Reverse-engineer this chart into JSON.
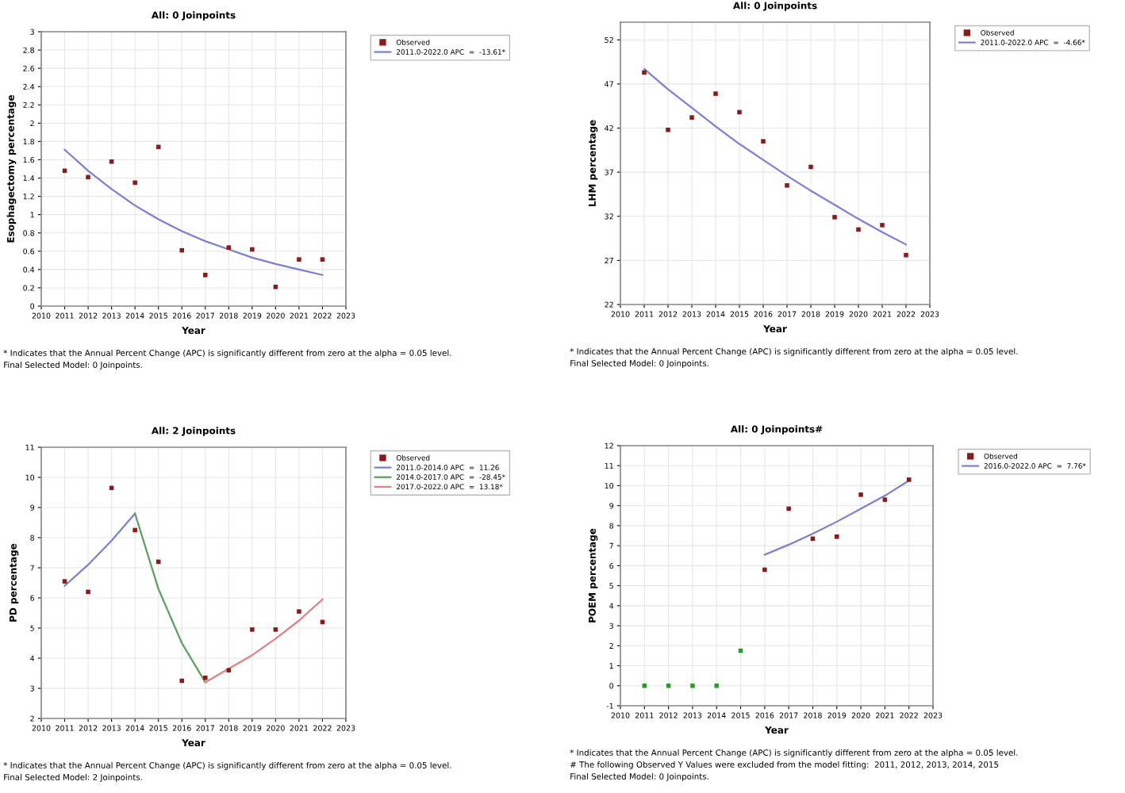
{
  "chart_data": [
    {
      "type": "line",
      "title": "All: 0 Joinpoints",
      "xlabel": "Year",
      "ylabel": "Esophagectomy percentage",
      "xlim": [
        2010,
        2023
      ],
      "xticks": [
        2010,
        2011,
        2012,
        2013,
        2014,
        2015,
        2016,
        2017,
        2018,
        2019,
        2020,
        2021,
        2022,
        2023
      ],
      "ylim": [
        0,
        3
      ],
      "yticks": [
        0,
        0.2,
        0.4,
        0.6,
        0.8,
        1,
        1.2,
        1.4,
        1.6,
        1.8,
        2,
        2.2,
        2.4,
        2.6,
        2.8,
        3
      ],
      "grid": true,
      "legend": "top right",
      "series": [
        {
          "name": "Observed",
          "type": "scatter",
          "marker": "square",
          "color": "#8b1a1a",
          "x": [
            2011,
            2012,
            2013,
            2014,
            2015,
            2016,
            2017,
            2018,
            2019,
            2020,
            2021,
            2022
          ],
          "values": [
            1.48,
            1.41,
            1.58,
            1.35,
            1.74,
            0.61,
            0.34,
            0.64,
            0.62,
            0.21,
            0.51,
            0.51
          ]
        },
        {
          "name": "2011.0-2022.0 APC  =  -13.61*",
          "color": "#7b7fd0",
          "x": [
            2011,
            2012,
            2013,
            2014,
            2015,
            2016,
            2017,
            2018,
            2019,
            2020,
            2021,
            2022
          ],
          "values": [
            1.71,
            1.48,
            1.28,
            1.1,
            0.95,
            0.82,
            0.71,
            0.62,
            0.53,
            0.46,
            0.4,
            0.34
          ]
        }
      ],
      "annotations": [
        "* Indicates that the Annual Percent Change (APC) is significantly different from zero at the alpha = 0.05 level.",
        "Final Selected Model: 0 Joinpoints."
      ]
    },
    {
      "type": "line",
      "title": "All: 0 Joinpoints",
      "xlabel": "Year",
      "ylabel": "LHM percentage",
      "xlim": [
        2010,
        2023
      ],
      "xticks": [
        2010,
        2011,
        2012,
        2013,
        2014,
        2015,
        2016,
        2017,
        2018,
        2019,
        2020,
        2021,
        2022,
        2023
      ],
      "ylim": [
        22,
        54
      ],
      "yticks": [
        22,
        27,
        32,
        37,
        42,
        47,
        52
      ],
      "grid": true,
      "legend": "top right",
      "series": [
        {
          "name": "Observed",
          "type": "scatter",
          "marker": "square",
          "color": "#8b1a1a",
          "x": [
            2011,
            2012,
            2013,
            2014,
            2015,
            2016,
            2017,
            2018,
            2019,
            2020,
            2021,
            2022
          ],
          "values": [
            48.3,
            41.8,
            43.2,
            45.9,
            43.8,
            40.5,
            35.5,
            37.6,
            31.9,
            30.5,
            31.0,
            27.6
          ]
        },
        {
          "name": "2011.0-2022.0 APC  =  -4.66*",
          "color": "#7b7fd0",
          "x": [
            2011,
            2012,
            2013,
            2014,
            2015,
            2016,
            2017,
            2018,
            2019,
            2020,
            2021,
            2022
          ],
          "values": [
            48.7,
            46.4,
            44.3,
            42.2,
            40.2,
            38.4,
            36.6,
            34.9,
            33.3,
            31.7,
            30.2,
            28.8
          ]
        }
      ],
      "annotations": [
        "* Indicates that the Annual Percent Change (APC) is significantly different from zero at the alpha = 0.05 level.",
        "Final Selected Model: 0 Joinpoints."
      ]
    },
    {
      "type": "line",
      "title": "All: 2 Joinpoints",
      "xlabel": "Year",
      "ylabel": "PD percentage",
      "xlim": [
        2010,
        2023
      ],
      "xticks": [
        2010,
        2011,
        2012,
        2013,
        2014,
        2015,
        2016,
        2017,
        2018,
        2019,
        2020,
        2021,
        2022,
        2023
      ],
      "ylim": [
        2,
        11
      ],
      "yticks": [
        2,
        3,
        4,
        5,
        6,
        7,
        8,
        9,
        10,
        11
      ],
      "grid": true,
      "legend": "top right",
      "series": [
        {
          "name": "Observed",
          "type": "scatter",
          "marker": "square",
          "color": "#8b1a1a",
          "x": [
            2011,
            2012,
            2013,
            2014,
            2015,
            2016,
            2017,
            2018,
            2019,
            2020,
            2021,
            2022
          ],
          "values": [
            6.55,
            6.2,
            9.65,
            8.25,
            7.2,
            3.25,
            3.35,
            3.6,
            4.95,
            4.95,
            5.55,
            5.2
          ]
        },
        {
          "name": "2011.0-2014.0 APC  =  11.26",
          "color": "#7b7fd0",
          "x": [
            2011,
            2012,
            2013,
            2014
          ],
          "values": [
            6.4,
            7.1,
            7.9,
            8.8
          ]
        },
        {
          "name": "2014.0-2017.0 APC  =  -28.45*",
          "color": "#5aa05a",
          "x": [
            2014,
            2015,
            2016,
            2017
          ],
          "values": [
            8.8,
            6.3,
            4.5,
            3.2
          ]
        },
        {
          "name": "2017.0-2022.0 APC  =  13.18*",
          "color": "#e08080",
          "x": [
            2017,
            2018,
            2019,
            2020,
            2021,
            2022
          ],
          "values": [
            3.2,
            3.65,
            4.1,
            4.65,
            5.25,
            5.95
          ]
        }
      ],
      "annotations": [
        "* Indicates that the Annual Percent Change (APC) is significantly different from zero at the alpha = 0.05 level.",
        "Final Selected Model: 2 Joinpoints."
      ]
    },
    {
      "type": "line",
      "title": "All: 0 Joinpoints#",
      "xlabel": "Year",
      "ylabel": "POEM percentage",
      "xlim": [
        2010,
        2023
      ],
      "xticks": [
        2010,
        2011,
        2012,
        2013,
        2014,
        2015,
        2016,
        2017,
        2018,
        2019,
        2020,
        2021,
        2022,
        2023
      ],
      "ylim": [
        -1,
        12
      ],
      "yticks": [
        -1,
        0,
        1,
        2,
        3,
        4,
        5,
        6,
        7,
        8,
        9,
        10,
        11,
        12
      ],
      "grid": true,
      "legend": "top right",
      "series": [
        {
          "name": "Observed",
          "type": "scatter",
          "marker": "square",
          "color": "#8b1a1a",
          "x": [
            2016,
            2017,
            2018,
            2019,
            2020,
            2021,
            2022
          ],
          "values": [
            5.8,
            8.85,
            7.35,
            7.45,
            9.55,
            9.3,
            10.3
          ]
        },
        {
          "type": "scatter",
          "marker": "square",
          "color": "#2e9a2e",
          "x": [
            2011,
            2012,
            2013,
            2014,
            2015
          ],
          "values": [
            0,
            0,
            0,
            0,
            1.75
          ]
        },
        {
          "name": "2016.0-2022.0 APC  =  7.76*",
          "color": "#7b7fd0",
          "x": [
            2016,
            2017,
            2018,
            2019,
            2020,
            2021,
            2022
          ],
          "values": [
            6.55,
            7.05,
            7.6,
            8.2,
            8.85,
            9.5,
            10.25
          ]
        }
      ],
      "annotations": [
        "* Indicates that the Annual Percent Change (APC) is significantly different from zero at the alpha = 0.05 level.",
        "# The following Observed Y Values were excluded from the model fitting:  2011, 2012, 2013, 2014, 2015",
        "Final Selected Model: 0 Joinpoints."
      ]
    }
  ]
}
